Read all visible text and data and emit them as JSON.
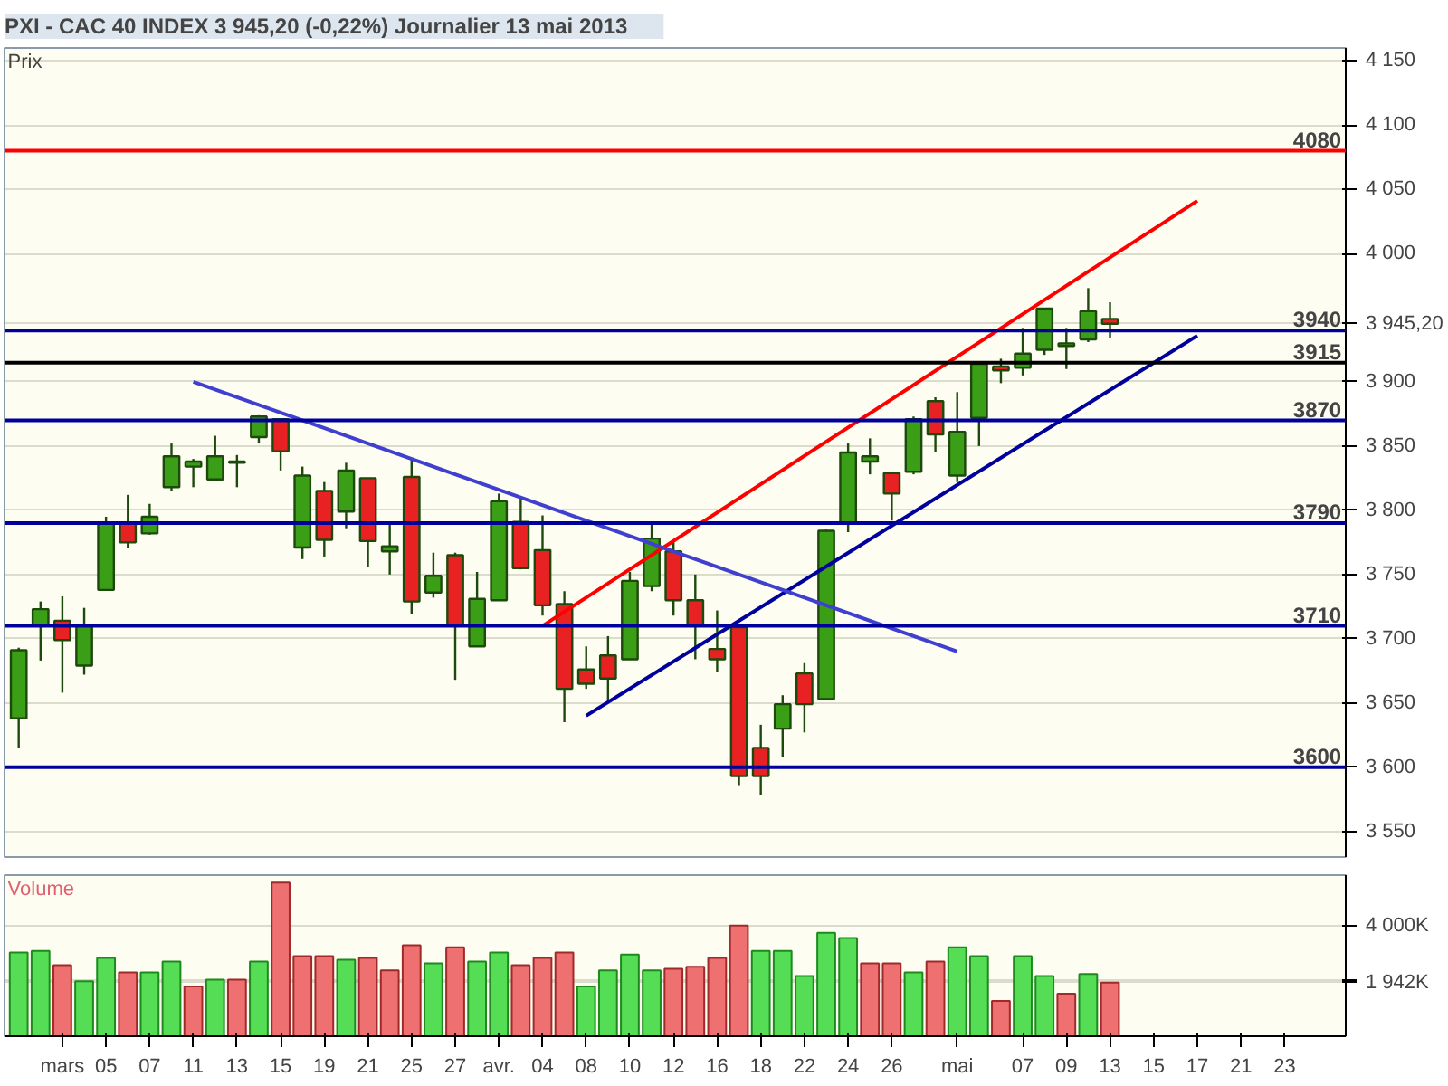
{
  "chart_data": [
    {
      "type": "candlestick",
      "title": "PXI - CAC 40 INDEX   3 945,20 (-0,22%)    Journalier  13 mai 2013",
      "ylabel": "Prix",
      "categories": [
        null,
        null,
        "mars",
        null,
        "05",
        null,
        "07",
        null,
        "11",
        null,
        "13",
        null,
        "15",
        null,
        "19",
        null,
        "21",
        null,
        "25",
        null,
        "27",
        null,
        "avr.",
        null,
        "04",
        null,
        "08",
        null,
        "10",
        null,
        "12",
        null,
        "16",
        null,
        "18",
        null,
        "22",
        null,
        "24",
        null,
        "26",
        null,
        null,
        "mai",
        null,
        null,
        "07",
        null,
        "09",
        null,
        "13",
        null,
        "15",
        null,
        "17",
        null,
        "21",
        null,
        "23"
      ],
      "ylim": [
        3530,
        4160
      ],
      "yticks": [
        {
          "value": 3550,
          "label": "3 550"
        },
        {
          "value": 3600,
          "label": "3 600"
        },
        {
          "value": 3650,
          "label": "3 650"
        },
        {
          "value": 3700,
          "label": "3 700"
        },
        {
          "value": 3750,
          "label": "3 750"
        },
        {
          "value": 3800,
          "label": "3 800"
        },
        {
          "value": 3850,
          "label": "3 850"
        },
        {
          "value": 3900,
          "label": "3 900"
        },
        {
          "value": 3945.2,
          "label": "3 945,20"
        },
        {
          "value": 4000,
          "label": "4 000"
        },
        {
          "value": 4050,
          "label": "4 050"
        },
        {
          "value": 4100,
          "label": "4 100"
        },
        {
          "value": 4150,
          "label": "4 150"
        }
      ],
      "grid": "y",
      "tick_labels": "y",
      "series": [
        {
          "type": "candlestick",
          "ohlc": [
            [
              3638,
              3693,
              3615,
              3691
            ],
            [
              3710,
              3729,
              3683,
              3723
            ],
            [
              3714,
              3733,
              3658,
              3699
            ],
            [
              3679,
              3724,
              3672,
              3710
            ],
            [
              3738,
              3795,
              3738,
              3790
            ],
            [
              3790,
              3812,
              3771,
              3775
            ],
            [
              3782,
              3805,
              3781,
              3795
            ],
            [
              3818,
              3852,
              3815,
              3842
            ],
            [
              3834,
              3840,
              3818,
              3838
            ],
            [
              3824,
              3858,
              3824,
              3842
            ],
            [
              3837,
              3843,
              3818,
              3838
            ],
            [
              3857,
              3874,
              3852,
              3873
            ],
            [
              3871,
              3871,
              3831,
              3846
            ],
            [
              3771,
              3834,
              3762,
              3827
            ],
            [
              3815,
              3822,
              3764,
              3777
            ],
            [
              3799,
              3837,
              3786,
              3831
            ],
            [
              3825,
              3825,
              3756,
              3776
            ],
            [
              3768,
              3791,
              3750,
              3772
            ],
            [
              3826,
              3840,
              3719,
              3729
            ],
            [
              3736,
              3767,
              3732,
              3749
            ],
            [
              3765,
              3767,
              3668,
              3710
            ],
            [
              3694,
              3752,
              3694,
              3731
            ],
            [
              3730,
              3813,
              3730,
              3807
            ],
            [
              3791,
              3809,
              3754,
              3755
            ],
            [
              3769,
              3796,
              3718,
              3726
            ],
            [
              3727,
              3737,
              3635,
              3661
            ],
            [
              3676,
              3694,
              3661,
              3665
            ],
            [
              3687,
              3702,
              3652,
              3669
            ],
            [
              3684,
              3752,
              3684,
              3745
            ],
            [
              3741,
              3791,
              3737,
              3778
            ],
            [
              3768,
              3776,
              3718,
              3730
            ],
            [
              3730,
              3750,
              3684,
              3710
            ],
            [
              3692,
              3722,
              3674,
              3684
            ],
            [
              3709,
              3709,
              3586,
              3593
            ],
            [
              3615,
              3633,
              3578,
              3593
            ],
            [
              3630,
              3656,
              3608,
              3649
            ],
            [
              3673,
              3681,
              3627,
              3649
            ],
            [
              3653,
              3785,
              3652,
              3784
            ],
            [
              3790,
              3852,
              3783,
              3845
            ],
            [
              3838,
              3856,
              3828,
              3842
            ],
            [
              3829,
              3830,
              3792,
              3813
            ],
            [
              3830,
              3873,
              3828,
              3871
            ],
            [
              3885,
              3888,
              3845,
              3859
            ],
            [
              3827,
              3892,
              3822,
              3861
            ],
            [
              3872,
              3915,
              3850,
              3914
            ],
            [
              3912,
              3918,
              3899,
              3909
            ],
            [
              3911,
              3942,
              3905,
              3922
            ],
            [
              3925,
              3957,
              3921,
              3957
            ],
            [
              3928,
              3942,
              3910,
              3930
            ],
            [
              3933,
              3973,
              3931,
              3955
            ],
            [
              3949,
              3962,
              3934,
              3945.2
            ],
            null,
            null,
            null,
            null,
            null,
            null,
            null,
            null
          ],
          "colors": [
            "#3a9e16",
            "#3a9e16",
            "#e82222",
            "#3a9e16",
            "#3a9e16",
            "#e82222",
            "#3a9e16",
            "#3a9e16",
            "#3a9e16",
            "#3a9e16",
            "#3a9e16",
            "#3a9e16",
            "#e82222",
            "#3a9e16",
            "#e82222",
            "#3a9e16",
            "#e82222",
            "#3a9e16",
            "#e82222",
            "#3a9e16",
            "#e82222",
            "#3a9e16",
            "#3a9e16",
            "#e82222",
            "#e82222",
            "#e82222",
            "#e82222",
            "#e82222",
            "#3a9e16",
            "#3a9e16",
            "#e82222",
            "#e82222",
            "#e82222",
            "#e82222",
            "#e82222",
            "#3a9e16",
            "#e82222",
            "#3a9e16",
            "#3a9e16",
            "#3a9e16",
            "#e82222",
            "#3a9e16",
            "#e82222",
            "#3a9e16",
            "#3a9e16",
            "#e82222",
            "#3a9e16",
            "#3a9e16",
            "#3a9e16",
            "#3a9e16",
            "#e82222",
            null,
            null,
            null,
            null,
            null,
            null,
            null,
            null
          ]
        },
        {
          "type": "line",
          "x": [
            "04",
            "17"
          ],
          "values": [
            3710,
            4041
          ],
          "color": "#ff0000"
        },
        {
          "type": "line",
          "x": [
            "08",
            "17"
          ],
          "values": [
            3640,
            3936
          ],
          "color": "#00009c"
        },
        {
          "type": "line",
          "x": [
            "11",
            "mai"
          ],
          "values": [
            3900,
            3690
          ],
          "color": "#4040d0"
        }
      ],
      "ref_lines": [
        {
          "axis": "y",
          "value": 4080,
          "label": "4080",
          "color": "#ff0000"
        },
        {
          "axis": "y",
          "value": 3940,
          "label": "3940",
          "color": "#00009c"
        },
        {
          "axis": "y",
          "value": 3915,
          "label": "3915",
          "color": "#000000"
        },
        {
          "axis": "y",
          "value": 3870,
          "label": "3870",
          "color": "#00009c"
        },
        {
          "axis": "y",
          "value": 3790,
          "label": "3790",
          "color": "#00009c"
        },
        {
          "axis": "y",
          "value": 3710,
          "label": "3710",
          "color": "#00009c"
        },
        {
          "axis": "y",
          "value": 3600,
          "label": "3600",
          "color": "#00009c"
        }
      ]
    },
    {
      "type": "bar",
      "ylabel": "Volume",
      "categories": [
        null,
        null,
        "mars",
        null,
        "05",
        null,
        "07",
        null,
        "11",
        null,
        "13",
        null,
        "15",
        null,
        "19",
        null,
        "21",
        null,
        "25",
        null,
        "27",
        null,
        "avr.",
        null,
        "04",
        null,
        "08",
        null,
        "10",
        null,
        "12",
        null,
        "16",
        null,
        "18",
        null,
        "22",
        null,
        "24",
        null,
        "26",
        null,
        null,
        "mai",
        null,
        null,
        "07",
        null,
        "09",
        null,
        "13",
        null,
        "15",
        null,
        "17",
        null,
        "21",
        null,
        "23"
      ],
      "ylim": [
        0,
        5830
      ],
      "yticks": [
        {
          "value": 1942,
          "label": "1 942K"
        },
        {
          "value": 2000,
          "label": null
        },
        {
          "value": 4000,
          "label": "4 000K"
        }
      ],
      "grid": "y",
      "values": [
        3030,
        3090,
        2570,
        1990,
        2830,
        2310,
        2310,
        2700,
        1800,
        2050,
        2050,
        2700,
        5560,
        2900,
        2900,
        2770,
        2830,
        2380,
        3290,
        2640,
        3220,
        2700,
        3030,
        2570,
        2830,
        3030,
        1800,
        2380,
        2960,
        2380,
        2440,
        2510,
        2830,
        4000,
        3090,
        3090,
        2180,
        3740,
        3550,
        2640,
        2640,
        2310,
        2700,
        3220,
        2900,
        1280,
        2900,
        2180,
        1540,
        2250,
        1942,
        null,
        null,
        null,
        null,
        null,
        null,
        null,
        null
      ],
      "colors": [
        "#55dd55",
        "#55dd55",
        "#ee7070",
        "#55dd55",
        "#55dd55",
        "#ee7070",
        "#55dd55",
        "#55dd55",
        "#ee7070",
        "#55dd55",
        "#ee7070",
        "#55dd55",
        "#ee7070",
        "#ee7070",
        "#ee7070",
        "#55dd55",
        "#ee7070",
        "#ee7070",
        "#ee7070",
        "#55dd55",
        "#ee7070",
        "#55dd55",
        "#55dd55",
        "#ee7070",
        "#ee7070",
        "#ee7070",
        "#55dd55",
        "#55dd55",
        "#55dd55",
        "#55dd55",
        "#ee7070",
        "#ee7070",
        "#ee7070",
        "#ee7070",
        "#55dd55",
        "#55dd55",
        "#55dd55",
        "#55dd55",
        "#55dd55",
        "#ee7070",
        "#ee7070",
        "#55dd55",
        "#ee7070",
        "#55dd55",
        "#55dd55",
        "#ee7070",
        "#55dd55",
        "#55dd55",
        "#ee7070",
        "#55dd55",
        "#ee7070",
        null,
        null,
        null,
        null,
        null,
        null,
        null,
        null
      ]
    }
  ]
}
